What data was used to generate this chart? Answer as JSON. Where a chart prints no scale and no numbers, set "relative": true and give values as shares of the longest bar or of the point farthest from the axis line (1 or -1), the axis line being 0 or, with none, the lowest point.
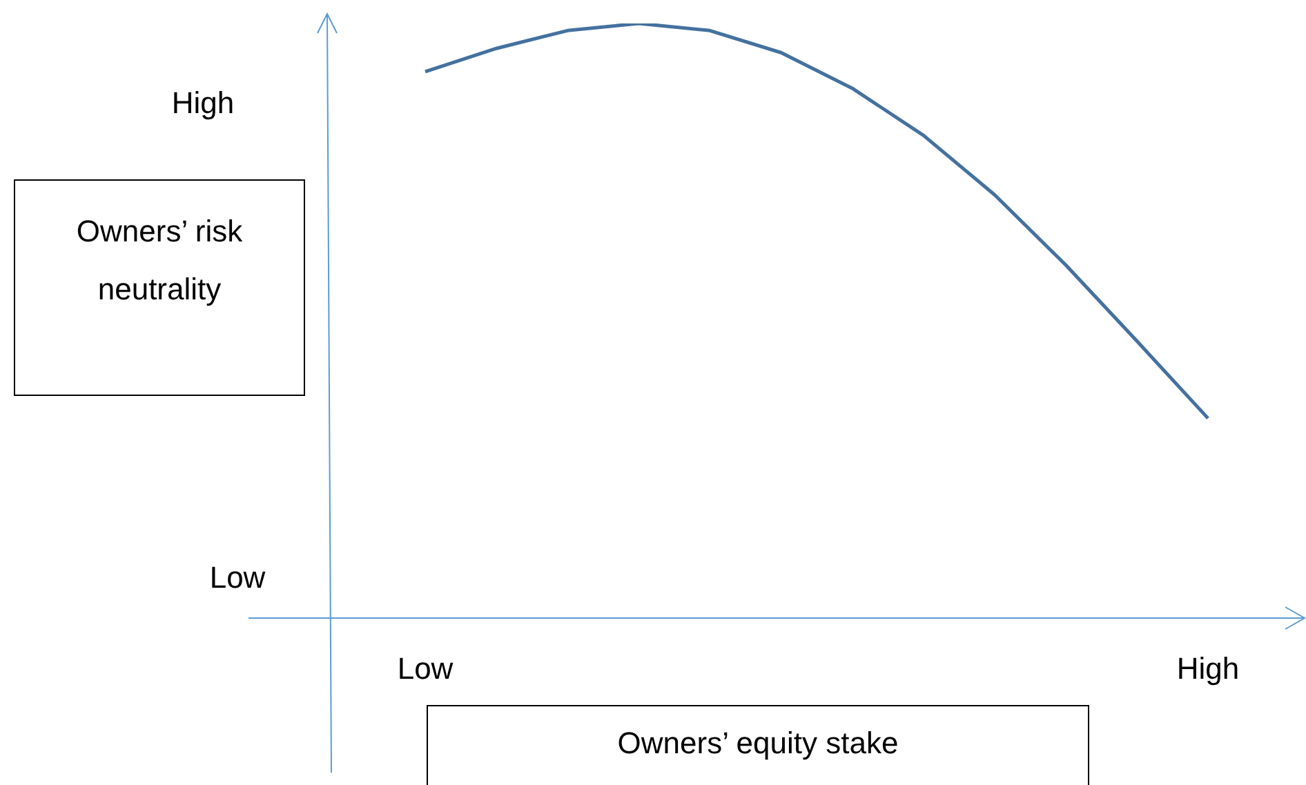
{
  "chart_data": {
    "type": "line",
    "relative": true,
    "xlabel": "Owners’ equity stake",
    "ylabel": "Owners’ risk neutrality",
    "categories": [
      "Low",
      null,
      null,
      null,
      null,
      null,
      null,
      null,
      null,
      null,
      null,
      "High"
    ],
    "series": [
      {
        "color": "#44719f",
        "values": [
          0.919,
          0.958,
          0.988,
          1,
          0.988,
          0.951,
          0.891,
          0.812,
          0.712,
          0.594,
          0.466,
          0.336
        ]
      }
    ],
    "annotations": [
      "High",
      "Low"
    ],
    "marker": "none",
    "legend": false
  }
}
